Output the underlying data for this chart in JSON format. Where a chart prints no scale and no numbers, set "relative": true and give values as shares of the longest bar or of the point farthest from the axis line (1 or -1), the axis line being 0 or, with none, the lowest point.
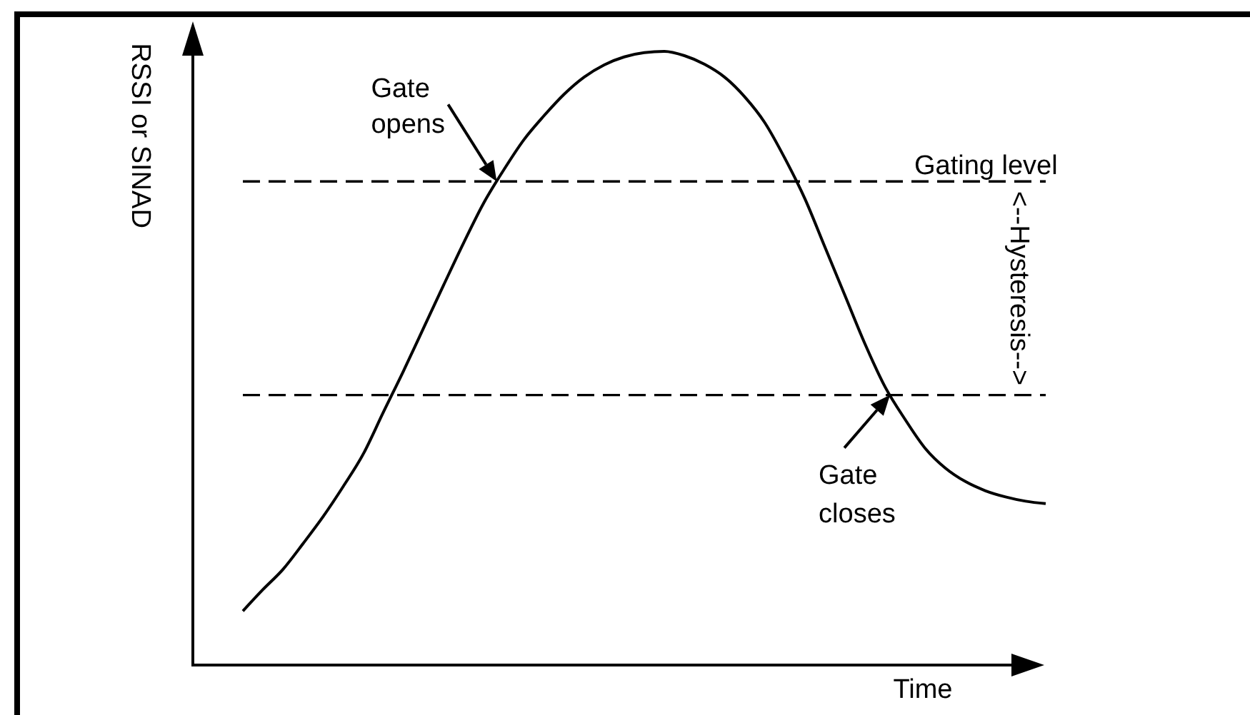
{
  "chart_data": {
    "type": "line",
    "relative": true,
    "xlabel": "Time",
    "ylabel": "RSSI or SINAD",
    "categories": [
      null,
      null,
      null,
      null,
      null,
      null,
      null,
      null,
      null,
      null,
      null,
      null,
      null,
      null,
      null,
      null,
      null,
      null,
      null,
      null,
      null,
      null,
      null,
      null,
      null,
      null,
      null,
      null,
      null,
      null,
      null,
      null,
      null,
      null,
      null,
      null,
      null,
      null,
      null,
      null,
      null
    ],
    "series": [
      {
        "color": "#000000",
        "values": [
          0.088,
          0.123,
          0.156,
          0.198,
          0.242,
          0.291,
          0.344,
          0.412,
          0.479,
          0.549,
          0.619,
          0.688,
          0.753,
          0.807,
          0.856,
          0.895,
          0.93,
          0.958,
          0.978,
          0.991,
          0.998,
          1,
          0.993,
          0.979,
          0.958,
          0.926,
          0.884,
          0.826,
          0.76,
          0.681,
          0.602,
          0.523,
          0.453,
          0.4,
          0.353,
          0.321,
          0.299,
          0.284,
          0.274,
          0.267,
          0.263
        ]
      }
    ],
    "ref_lines": [
      {
        "axis": "y",
        "value": 0.788,
        "label": "Gating level",
        "color": "#000000",
        "line_style": "dashed"
      },
      {
        "axis": "y",
        "value": 0.44,
        "color": "#000000",
        "line_style": "dashed"
      }
    ],
    "annotations": [
      {
        "text": "Gate opens",
        "y": 0.788
      },
      {
        "text": "Gate closes",
        "y": 0.44
      },
      "<--Hysteresis-->"
    ]
  }
}
